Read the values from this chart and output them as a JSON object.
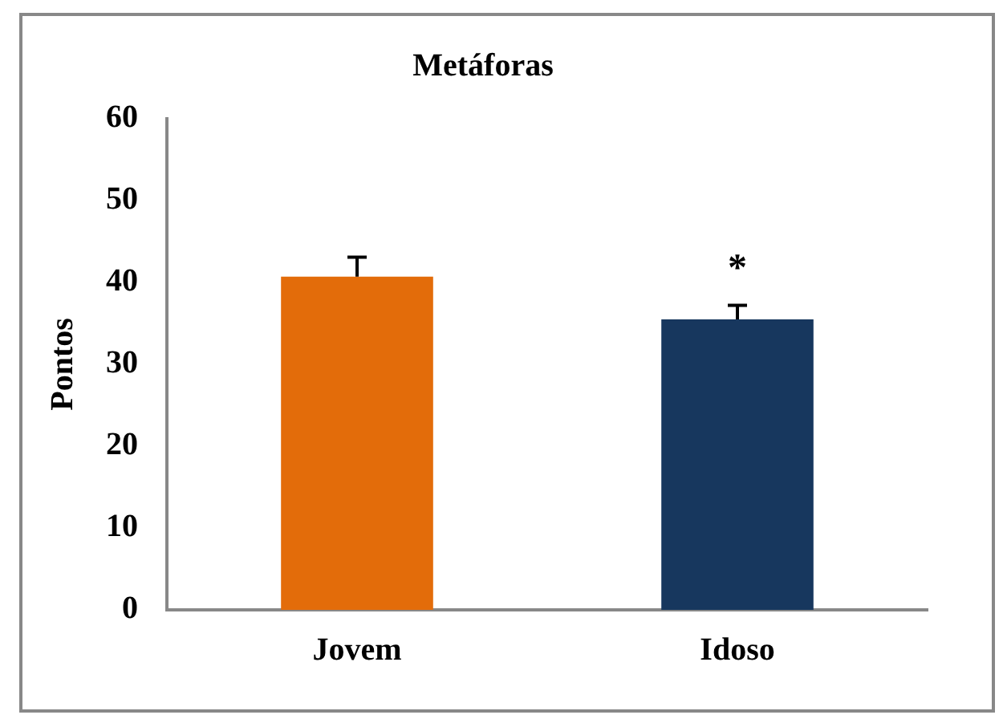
{
  "chart_data": {
    "type": "bar",
    "title": "Metáforas",
    "ylabel": "Pontos",
    "categories": [
      "Jovem",
      "Idoso"
    ],
    "values": [
      40.7,
      35.5
    ],
    "colors": [
      "#e36c0a",
      "#17375e"
    ],
    "errors": [
      [
        40.7,
        43.1
      ],
      [
        35.5,
        37.2
      ]
    ],
    "ylim": [
      0,
      60
    ],
    "yticks": [
      0,
      10,
      20,
      30,
      40,
      50,
      60
    ],
    "grid": false,
    "legend": false,
    "annotations": [
      {
        "text": "*",
        "x": "Idoso",
        "y": 37.2
      }
    ]
  }
}
